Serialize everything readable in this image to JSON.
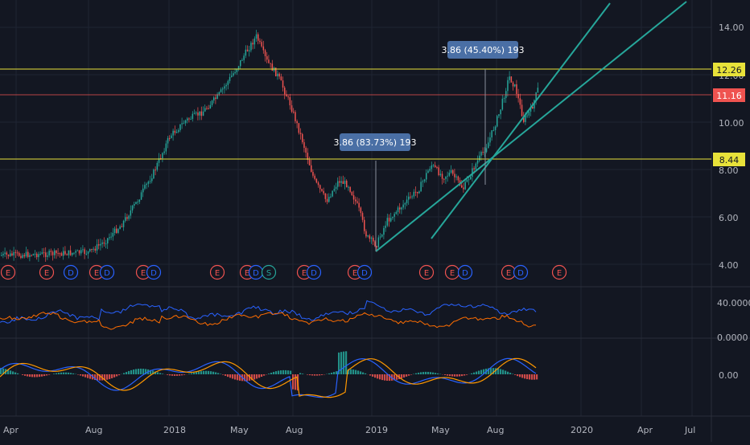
{
  "colors": {
    "background": "#131722",
    "grid": "#1f2433",
    "candle_up": "#26a69a",
    "candle_down": "#ef5350",
    "trendline": "#26a69a",
    "level_yellow": "#e8e23a",
    "level_red": "#ef5350",
    "measure_box": "#4a6fa5",
    "series_blue": "#2962ff",
    "series_orange": "#ff6d00",
    "earnings": "#ef5350",
    "dividend": "#2962ff",
    "split": "#26a69a"
  },
  "price_axis": {
    "ticks": [
      "14.00",
      "12.00",
      "10.00",
      "8.00",
      "6.00",
      "4.00"
    ],
    "levels": [
      {
        "label": "12.26",
        "value": 12.26,
        "kind": "yellow"
      },
      {
        "label": "11.16",
        "value": 11.16,
        "kind": "red"
      },
      {
        "label": "8.44",
        "value": 8.44,
        "kind": "yellow"
      }
    ]
  },
  "indicator1_axis": {
    "ticks": [
      "40.0000",
      "0.0000"
    ]
  },
  "indicator2_axis": {
    "ticks": [
      "0.00"
    ]
  },
  "time_axis": {
    "ticks": [
      "Apr",
      "Aug",
      "2018",
      "May",
      "Aug",
      "2019",
      "May",
      "Aug",
      "2020",
      "Apr",
      "Jul"
    ]
  },
  "measurements": [
    {
      "label": "3.86 (83.73%) 193"
    },
    {
      "label": "3.86 (45.40%) 193"
    }
  ],
  "event_markers": [
    {
      "t": "E"
    },
    {
      "t": "E"
    },
    {
      "t": "D"
    },
    {
      "t": "E"
    },
    {
      "t": "D"
    },
    {
      "t": "E"
    },
    {
      "t": "D"
    },
    {
      "t": "E"
    },
    {
      "t": "E"
    },
    {
      "t": "D"
    },
    {
      "t": "S"
    },
    {
      "t": "E"
    },
    {
      "t": "D"
    },
    {
      "t": "E"
    },
    {
      "t": "D"
    },
    {
      "t": "E"
    },
    {
      "t": "E"
    },
    {
      "t": "D"
    },
    {
      "t": "E"
    },
    {
      "t": "D"
    },
    {
      "t": "E"
    }
  ]
}
